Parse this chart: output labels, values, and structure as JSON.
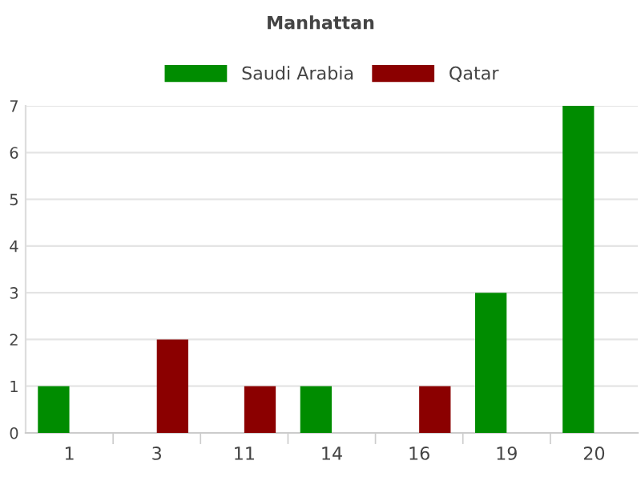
{
  "chart_data": {
    "type": "bar",
    "title": "Manhattan",
    "categories": [
      "1",
      "3",
      "11",
      "14",
      "16",
      "19",
      "20"
    ],
    "series": [
      {
        "name": "Saudi Arabia",
        "color": "#008c00",
        "values": [
          1,
          0,
          0,
          1,
          0,
          3,
          7
        ]
      },
      {
        "name": "Qatar",
        "color": "#8b0000",
        "values": [
          0,
          2,
          1,
          0,
          1,
          0,
          0
        ]
      }
    ],
    "ylim": [
      0,
      7
    ],
    "yticks": [
      0,
      1,
      2,
      3,
      4,
      5,
      6,
      7
    ],
    "grid": "y",
    "legend": "top"
  }
}
